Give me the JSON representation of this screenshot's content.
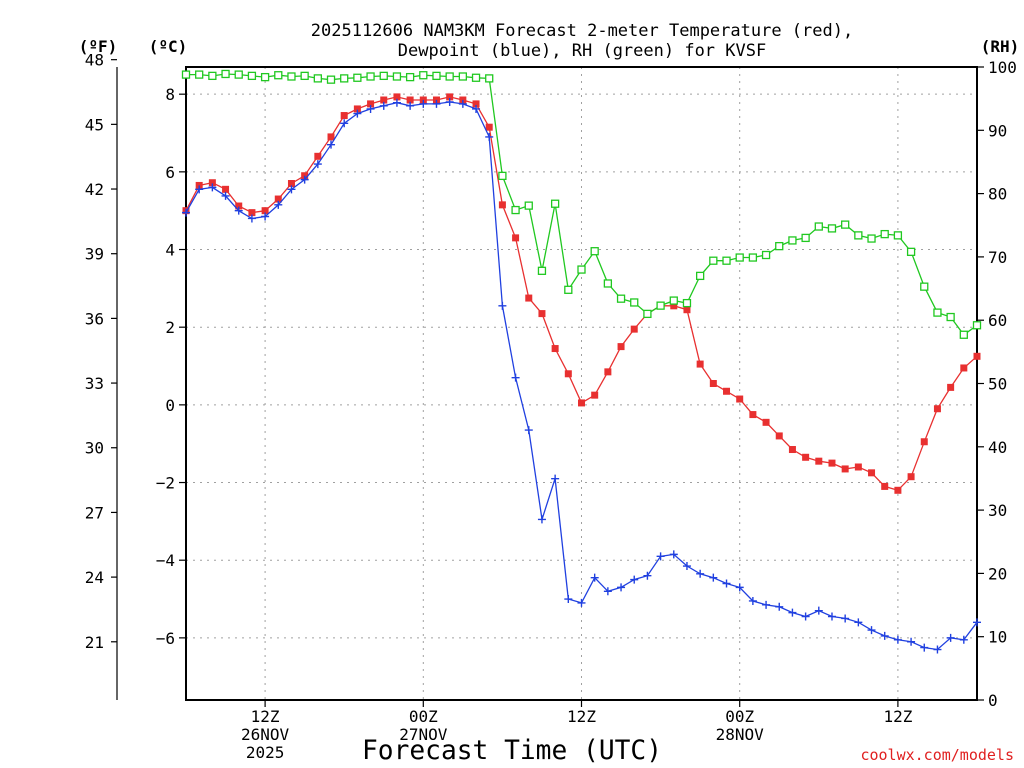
{
  "chart_data": {
    "type": "line",
    "title_line1": "2025112606 NAM3KM Forecast 2-meter Temperature (red),",
    "title_line2": "Dewpoint (blue), RH (green) for KVSF",
    "xlabel": "Forecast Time (UTC)",
    "credit": "coolwx.com/models",
    "unit_f": "(ºF)",
    "unit_c": "(ºC)",
    "unit_rh": "(RH)",
    "x_unit": "forecast hour (hours since 2025112606)",
    "xlim": [
      0,
      60
    ],
    "ylim_c": [
      -7.6,
      8.7
    ],
    "ylim_rh": [
      0,
      100
    ],
    "ylim_f": [
      18.3,
      47.66
    ],
    "c_ticks": [
      {
        "value": 8,
        "label": "8"
      },
      {
        "value": 6,
        "label": "6"
      },
      {
        "value": 4,
        "label": "4"
      },
      {
        "value": 2,
        "label": "2"
      },
      {
        "value": 0,
        "label": "0"
      },
      {
        "value": -2,
        "label": "−2"
      },
      {
        "value": -4,
        "label": "−4"
      },
      {
        "value": -6,
        "label": "−6"
      }
    ],
    "f_ticks": [
      {
        "value": 48,
        "label": "48"
      },
      {
        "value": 45,
        "label": "45"
      },
      {
        "value": 42,
        "label": "42"
      },
      {
        "value": 39,
        "label": "39"
      },
      {
        "value": 36,
        "label": "36"
      },
      {
        "value": 33,
        "label": "33"
      },
      {
        "value": 30,
        "label": "30"
      },
      {
        "value": 27,
        "label": "27"
      },
      {
        "value": 24,
        "label": "24"
      },
      {
        "value": 21,
        "label": "21"
      }
    ],
    "rh_ticks": [
      {
        "value": 100,
        "label": "100"
      },
      {
        "value": 90,
        "label": "90"
      },
      {
        "value": 80,
        "label": "80"
      },
      {
        "value": 70,
        "label": "70"
      },
      {
        "value": 60,
        "label": "60"
      },
      {
        "value": 50,
        "label": "50"
      },
      {
        "value": 40,
        "label": "40"
      },
      {
        "value": 30,
        "label": "30"
      },
      {
        "value": 20,
        "label": "20"
      },
      {
        "value": 10,
        "label": "10"
      },
      {
        "value": 0,
        "label": "0"
      }
    ],
    "x_ticks": [
      {
        "hour": 6,
        "lines": [
          "12Z",
          "26NOV",
          "2025"
        ]
      },
      {
        "hour": 18,
        "lines": [
          "00Z",
          "27NOV"
        ]
      },
      {
        "hour": 30,
        "lines": [
          "12Z"
        ]
      },
      {
        "hour": 42,
        "lines": [
          "00Z",
          "28NOV"
        ]
      },
      {
        "hour": 54,
        "lines": [
          "12Z"
        ]
      }
    ],
    "series": [
      {
        "name": "2-meter Temperature",
        "unit": "C",
        "color": "#e83030",
        "marker": "filled-square",
        "x": [
          0,
          1,
          2,
          3,
          4,
          5,
          6,
          7,
          8,
          9,
          10,
          11,
          12,
          13,
          14,
          15,
          16,
          17,
          18,
          19,
          20,
          21,
          22,
          23,
          24,
          25,
          26,
          27,
          28,
          29,
          30,
          31,
          32,
          33,
          34,
          35,
          36,
          37,
          38,
          39,
          40,
          41,
          42,
          43,
          44,
          45,
          46,
          47,
          48,
          49,
          50,
          51,
          52,
          53,
          54,
          55,
          56,
          57,
          58,
          59,
          60
        ],
        "values": [
          5.0,
          5.65,
          5.72,
          5.55,
          5.12,
          4.95,
          5.0,
          5.3,
          5.7,
          5.9,
          6.4,
          6.9,
          7.45,
          7.62,
          7.75,
          7.85,
          7.93,
          7.85,
          7.85,
          7.85,
          7.93,
          7.85,
          7.75,
          7.15,
          5.15,
          4.3,
          2.75,
          2.35,
          1.45,
          0.8,
          0.05,
          0.25,
          0.85,
          1.5,
          1.95,
          2.35,
          2.55,
          2.55,
          2.45,
          1.05,
          0.55,
          0.35,
          0.15,
          -0.25,
          -0.45,
          -0.8,
          -1.15,
          -1.35,
          -1.45,
          -1.5,
          -1.65,
          -1.6,
          -1.75,
          -2.1,
          -2.2,
          -1.85,
          -0.95,
          -0.1,
          0.45,
          0.95,
          1.25
        ]
      },
      {
        "name": "Dewpoint",
        "unit": "C",
        "color": "#2040e0",
        "marker": "plus",
        "x": [
          0,
          1,
          2,
          3,
          4,
          5,
          6,
          7,
          8,
          9,
          10,
          11,
          12,
          13,
          14,
          15,
          16,
          17,
          18,
          19,
          20,
          21,
          22,
          23,
          24,
          25,
          26,
          27,
          28,
          29,
          30,
          31,
          32,
          33,
          34,
          35,
          36,
          37,
          38,
          39,
          40,
          41,
          42,
          43,
          44,
          45,
          46,
          47,
          48,
          49,
          50,
          51,
          52,
          53,
          54,
          55,
          56,
          57,
          58,
          59,
          60
        ],
        "values": [
          4.95,
          5.55,
          5.6,
          5.38,
          5.0,
          4.8,
          4.85,
          5.15,
          5.55,
          5.8,
          6.2,
          6.7,
          7.25,
          7.5,
          7.62,
          7.7,
          7.78,
          7.7,
          7.75,
          7.75,
          7.8,
          7.75,
          7.62,
          6.9,
          2.55,
          0.7,
          -0.65,
          -2.95,
          -1.9,
          -5.0,
          -5.1,
          -4.45,
          -4.8,
          -4.7,
          -4.5,
          -4.4,
          -3.9,
          -3.85,
          -4.15,
          -4.35,
          -4.45,
          -4.6,
          -4.7,
          -5.05,
          -5.15,
          -5.2,
          -5.35,
          -5.45,
          -5.3,
          -5.45,
          -5.5,
          -5.6,
          -5.8,
          -5.95,
          -6.05,
          -6.1,
          -6.25,
          -6.3,
          -6.0,
          -6.05,
          -5.6
        ]
      },
      {
        "name": "RH",
        "unit": "%",
        "color": "#20c820",
        "marker": "open-square",
        "x": [
          0,
          1,
          2,
          3,
          4,
          5,
          6,
          7,
          8,
          9,
          10,
          11,
          12,
          13,
          14,
          15,
          16,
          17,
          18,
          19,
          20,
          21,
          22,
          23,
          24,
          25,
          26,
          27,
          28,
          29,
          30,
          31,
          32,
          33,
          34,
          35,
          36,
          37,
          38,
          39,
          40,
          41,
          42,
          43,
          44,
          45,
          46,
          47,
          48,
          49,
          50,
          51,
          52,
          53,
          54,
          55,
          56,
          57,
          58,
          59,
          60
        ],
        "values": [
          98.8,
          98.8,
          98.6,
          98.9,
          98.8,
          98.6,
          98.4,
          98.7,
          98.5,
          98.6,
          98.2,
          98.0,
          98.2,
          98.3,
          98.5,
          98.6,
          98.5,
          98.4,
          98.7,
          98.6,
          98.5,
          98.5,
          98.3,
          98.2,
          82.8,
          77.4,
          78.1,
          67.8,
          78.4,
          64.8,
          68.0,
          70.9,
          65.8,
          63.4,
          62.8,
          61.0,
          62.3,
          63.1,
          62.7,
          67.0,
          69.4,
          69.4,
          69.9,
          69.9,
          70.3,
          71.7,
          72.6,
          73.0,
          74.8,
          74.5,
          75.1,
          73.4,
          72.9,
          73.6,
          73.4,
          70.8,
          65.3,
          61.2,
          60.5,
          57.7,
          59.2
        ]
      }
    ]
  }
}
